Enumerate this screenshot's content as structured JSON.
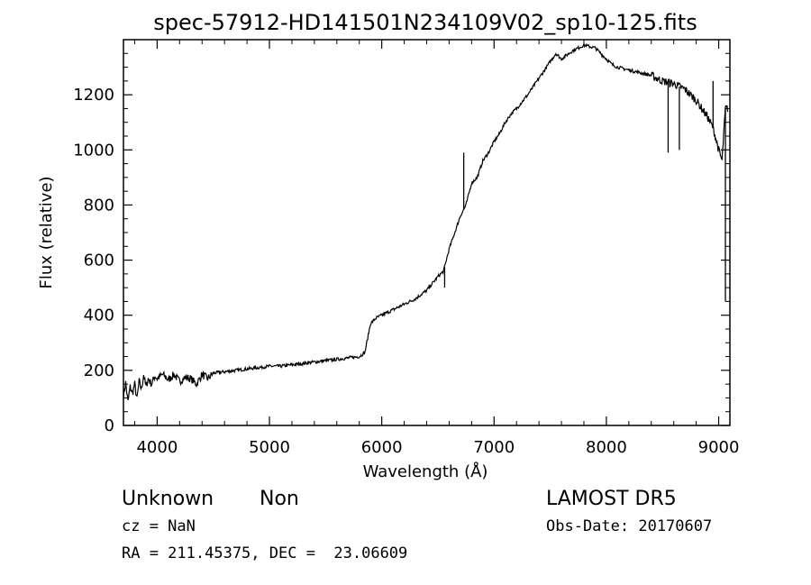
{
  "chart_data": {
    "type": "line",
    "title": "spec-57912-HD141501N234109V02_sp10-125.fits",
    "xlabel": "Wavelength (Å)",
    "ylabel": "Flux (relative)",
    "xlim": [
      3700,
      9100
    ],
    "ylim": [
      0,
      1400
    ],
    "x_ticks": [
      4000,
      5000,
      6000,
      7000,
      8000,
      9000
    ],
    "y_ticks": [
      0,
      200,
      400,
      600,
      800,
      1000,
      1200
    ],
    "grid": false,
    "series": [
      {
        "points": [
          [
            3700,
            110
          ],
          [
            3720,
            155
          ],
          [
            3740,
            85
          ],
          [
            3760,
            140
          ],
          [
            3780,
            115
          ],
          [
            3800,
            150
          ],
          [
            3820,
            95
          ],
          [
            3840,
            160
          ],
          [
            3860,
            130
          ],
          [
            3880,
            185
          ],
          [
            3900,
            140
          ],
          [
            3920,
            170
          ],
          [
            3950,
            150
          ],
          [
            3980,
            180
          ],
          [
            4000,
            170
          ],
          [
            4050,
            185
          ],
          [
            4100,
            165
          ],
          [
            4150,
            185
          ],
          [
            4200,
            160
          ],
          [
            4250,
            175
          ],
          [
            4300,
            170
          ],
          [
            4350,
            150
          ],
          [
            4400,
            185
          ],
          [
            4450,
            170
          ],
          [
            4500,
            190
          ],
          [
            4600,
            195
          ],
          [
            4700,
            200
          ],
          [
            4800,
            205
          ],
          [
            4900,
            210
          ],
          [
            5000,
            215
          ],
          [
            5100,
            215
          ],
          [
            5200,
            220
          ],
          [
            5300,
            225
          ],
          [
            5400,
            230
          ],
          [
            5500,
            235
          ],
          [
            5600,
            240
          ],
          [
            5700,
            245
          ],
          [
            5800,
            250
          ],
          [
            5850,
            265
          ],
          [
            5900,
            370
          ],
          [
            5950,
            390
          ],
          [
            6000,
            400
          ],
          [
            6050,
            410
          ],
          [
            6100,
            420
          ],
          [
            6200,
            440
          ],
          [
            6300,
            460
          ],
          [
            6400,
            490
          ],
          [
            6500,
            540
          ],
          [
            6550,
            560
          ],
          [
            6600,
            640
          ],
          [
            6650,
            700
          ],
          [
            6700,
            760
          ],
          [
            6750,
            800
          ],
          [
            6800,
            880
          ],
          [
            6850,
            900
          ],
          [
            6900,
            960
          ],
          [
            6950,
            990
          ],
          [
            7000,
            1030
          ],
          [
            7050,
            1060
          ],
          [
            7100,
            1100
          ],
          [
            7150,
            1130
          ],
          [
            7200,
            1150
          ],
          [
            7300,
            1200
          ],
          [
            7400,
            1260
          ],
          [
            7500,
            1320
          ],
          [
            7550,
            1350
          ],
          [
            7600,
            1330
          ],
          [
            7700,
            1360
          ],
          [
            7800,
            1380
          ],
          [
            7900,
            1370
          ],
          [
            8000,
            1330
          ],
          [
            8050,
            1310
          ],
          [
            8100,
            1300
          ],
          [
            8200,
            1290
          ],
          [
            8300,
            1280
          ],
          [
            8400,
            1270
          ],
          [
            8500,
            1250
          ],
          [
            8600,
            1240
          ],
          [
            8700,
            1220
          ],
          [
            8800,
            1180
          ],
          [
            8900,
            1120
          ],
          [
            8950,
            1080
          ],
          [
            9000,
            1000
          ],
          [
            9030,
            960
          ],
          [
            9060,
            1150
          ],
          [
            9080,
            1150
          ]
        ],
        "spikes": [
          [
            6730,
            990
          ],
          [
            6560,
            500
          ],
          [
            8550,
            990
          ],
          [
            8650,
            1000
          ],
          [
            8950,
            1250
          ],
          [
            9060,
            450
          ]
        ]
      }
    ]
  },
  "annotations": {
    "object_class": "Unknown",
    "object_subclass": "Non",
    "survey": "LAMOST DR5",
    "redshift": "cz = NaN",
    "obs_date": "Obs-Date: 20170607",
    "coords": "RA = 211.45375, DEC =  23.06609"
  }
}
